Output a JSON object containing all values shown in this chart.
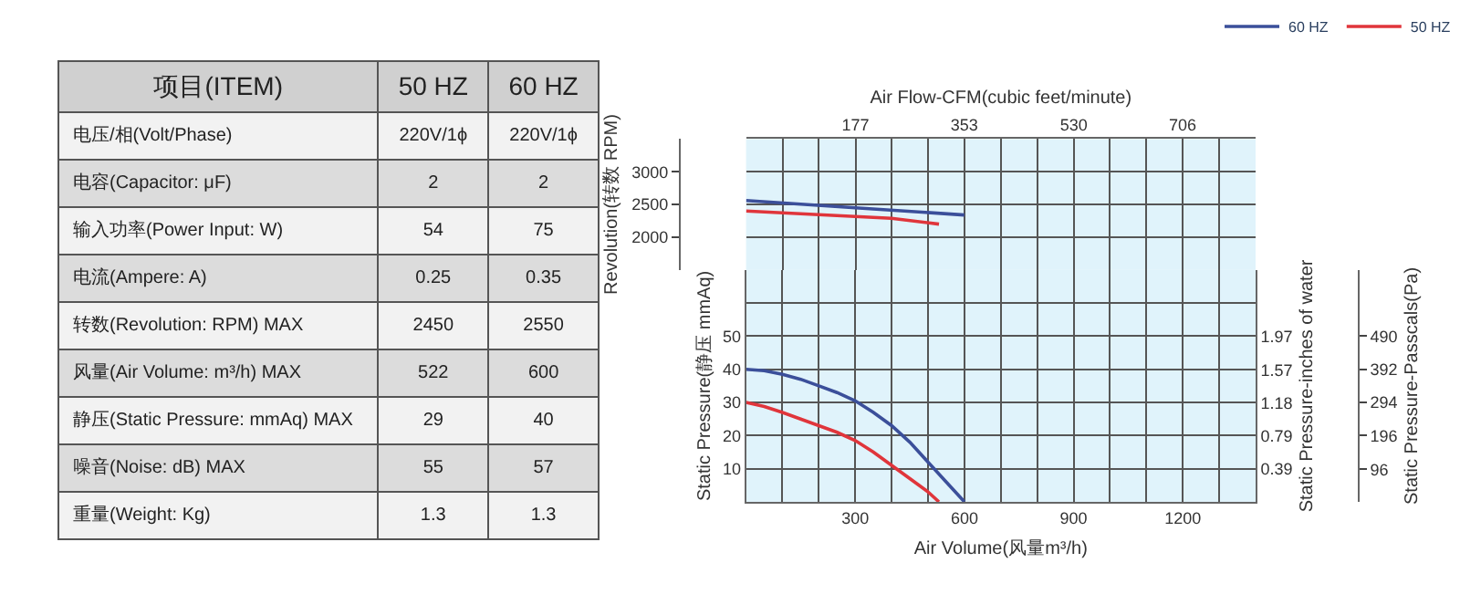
{
  "chart_data": [
    {
      "type": "other",
      "title": "项目(ITEM)",
      "categories": [
        "电压/相(Volt/Phase)",
        "电容(Capacitor: μF)",
        "输入功率(Power Input: W)",
        "电流(Ampere: A)",
        "转数(Revolution: RPM) MAX",
        "风量(Air Volume: m³/h) MAX",
        "静压(Static Pressure: mmAq) MAX",
        "噪音(Noise: dB) MAX",
        "重量(Weight: Kg)"
      ],
      "series": [
        {
          "name": "50 HZ",
          "colors": [
            "#f2f2f2",
            "#dcdcdc",
            "#f2f2f2",
            "#dcdcdc",
            "#f2f2f2",
            "#dcdcdc",
            "#f2f2f2",
            "#dcdcdc",
            "#f2f2f2"
          ],
          "values": [
            null,
            2,
            54,
            0.25,
            2450,
            522,
            29,
            55,
            1.3
          ],
          "value_labels": [
            "220V/1ϕ",
            "2",
            "54",
            "0.25",
            "2450",
            "522",
            "29",
            "55",
            "1.3"
          ]
        },
        {
          "name": "60 HZ",
          "colors": [
            "#f2f2f2",
            "#dcdcdc",
            "#f2f2f2",
            "#dcdcdc",
            "#f2f2f2",
            "#dcdcdc",
            "#f2f2f2",
            "#dcdcdc",
            "#f2f2f2"
          ],
          "values": [
            null,
            2,
            75,
            0.35,
            2550,
            600,
            40,
            57,
            1.3
          ],
          "value_labels": [
            "220V/1ϕ",
            "2",
            "75",
            "0.35",
            "2550",
            "600",
            "40",
            "57",
            "1.3"
          ]
        }
      ]
    },
    {
      "type": "line",
      "xlabel": "Air Flow-CFM(cubic feet/minute)",
      "ylabel": "Revolution(转数 RPM)",
      "xlim": [
        0,
        824
      ],
      "xticks": [
        {
          "value": 58.9,
          "label": null
        },
        {
          "value": 117.7,
          "label": null
        },
        177,
        {
          "value": 235.4,
          "label": null
        },
        {
          "value": 294.3,
          "label": null
        },
        353,
        {
          "value": 412,
          "label": null
        },
        {
          "value": 470.9,
          "label": null
        },
        530,
        {
          "value": 588.6,
          "label": null
        },
        {
          "value": 647.5,
          "label": null
        },
        706,
        {
          "value": 765.2,
          "label": null
        }
      ],
      "ylim": [
        1500,
        3500
      ],
      "yticks": [
        2000,
        2500,
        3000
      ],
      "grid": true,
      "legend": "top right",
      "marker": "none",
      "line_style": "solid",
      "series": [
        {
          "name": "60 HZ",
          "color": "#3b4f9a",
          "x": [
            0,
            177,
            353
          ],
          "values": [
            2560,
            2450,
            2340
          ]
        },
        {
          "name": "50 HZ",
          "color": "#e0353b",
          "x": [
            0,
            235,
            312
          ],
          "values": [
            2400,
            2290,
            2200
          ]
        }
      ]
    },
    {
      "type": "line",
      "xlabel": "Air Volume(风量m³/h)",
      "ylabel": "Static Pressure(静压 mmAq)",
      "y2label": "Static Pressure-inches of water",
      "y3label": "Static Pressure-Passcals(Pa)",
      "xlim": [
        0,
        1400
      ],
      "xticks": [
        {
          "value": 100,
          "label": null
        },
        {
          "value": 200,
          "label": null
        },
        300,
        {
          "value": 400,
          "label": null
        },
        {
          "value": 500,
          "label": null
        },
        600,
        {
          "value": 700,
          "label": null
        },
        {
          "value": 800,
          "label": null
        },
        900,
        {
          "value": 1000,
          "label": null
        },
        {
          "value": 1100,
          "label": null
        },
        1200,
        {
          "value": 1300,
          "label": null
        }
      ],
      "ylim": [
        0,
        70
      ],
      "yticks": [
        10,
        20,
        30,
        40,
        50,
        {
          "value": 60,
          "label": null
        }
      ],
      "y2lim": [
        0,
        2.76
      ],
      "y2ticks": [
        0.39,
        0.79,
        1.18,
        1.57,
        1.97
      ],
      "y3lim": [
        0,
        686
      ],
      "y3ticks": [
        96,
        196,
        294,
        392,
        490
      ],
      "grid": true,
      "marker": "none",
      "line_style": "solid",
      "series": [
        {
          "color": "#3b4f9a",
          "x": [
            0,
            50,
            100,
            150,
            200,
            250,
            300,
            350,
            400,
            450,
            500,
            550,
            600
          ],
          "values": [
            40,
            39.6,
            38.5,
            37,
            35,
            33,
            30.5,
            27,
            23,
            18,
            12,
            6,
            0
          ]
        },
        {
          "color": "#e0353b",
          "x": [
            0,
            50,
            100,
            150,
            200,
            250,
            300,
            350,
            400,
            450,
            500,
            530
          ],
          "values": [
            30,
            28.8,
            27,
            25,
            23,
            21,
            18.5,
            15,
            11,
            7,
            3,
            0
          ]
        }
      ]
    }
  ]
}
